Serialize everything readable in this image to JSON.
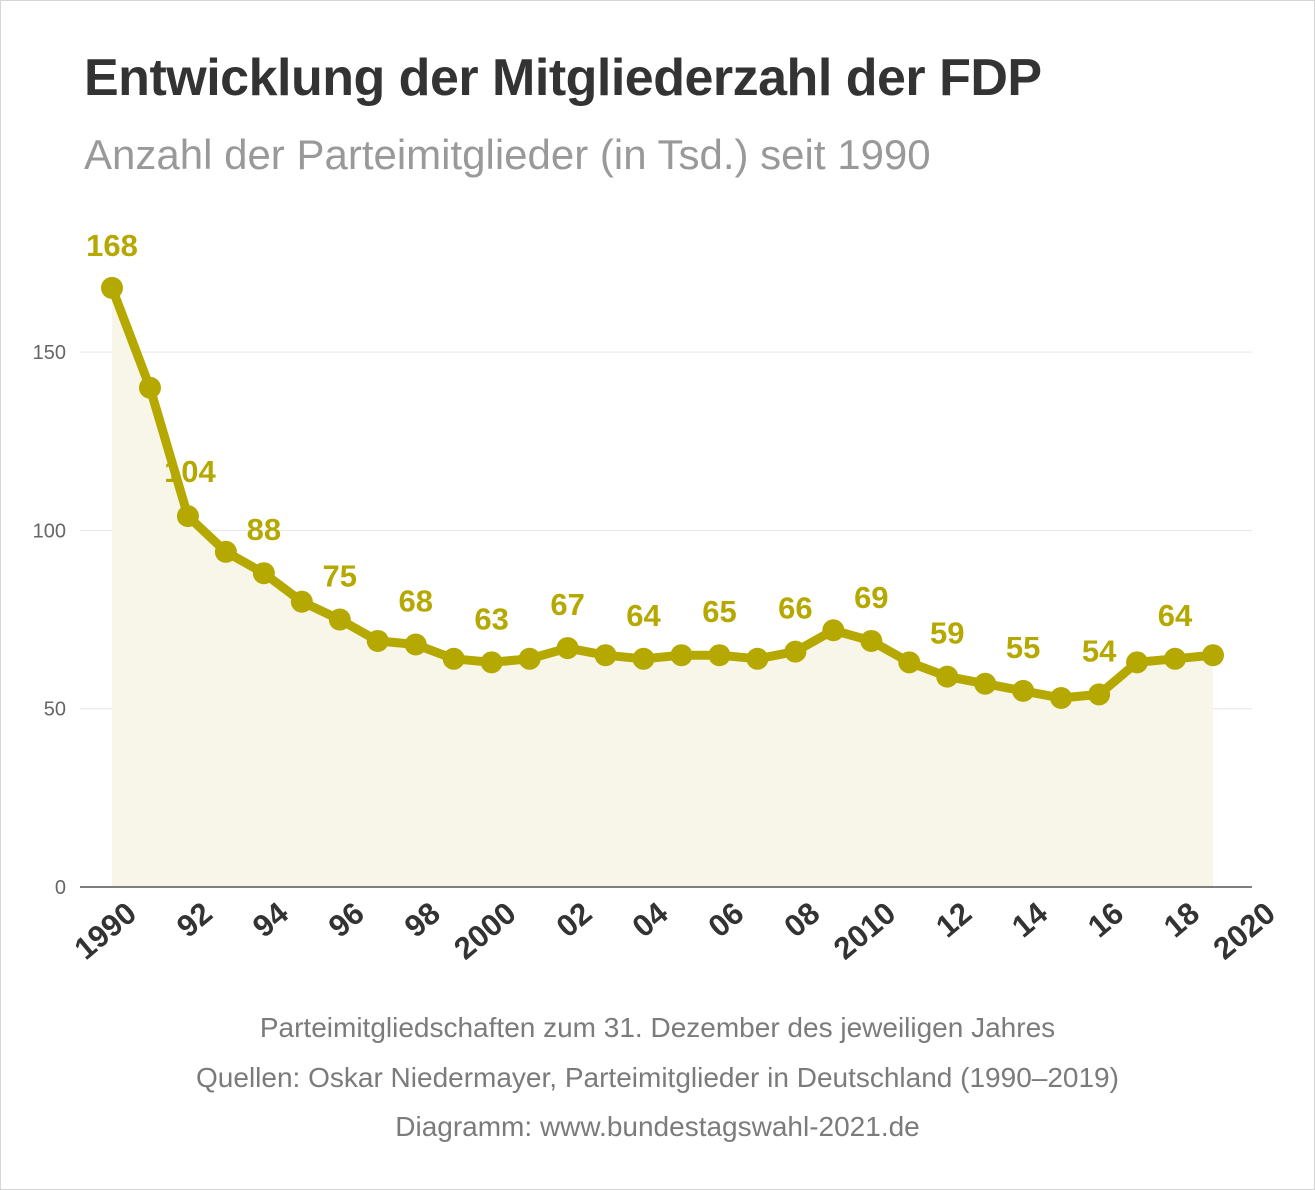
{
  "chart_data": {
    "type": "line",
    "title": "Entwicklung der Mitgliederzahl der FDP",
    "subtitle": "Anzahl der Parteimitglieder (in Tsd.) seit 1990",
    "x": [
      1990,
      1991,
      1992,
      1993,
      1994,
      1995,
      1996,
      1997,
      1998,
      1999,
      2000,
      2001,
      2002,
      2003,
      2004,
      2005,
      2006,
      2007,
      2008,
      2009,
      2010,
      2011,
      2012,
      2013,
      2014,
      2015,
      2016,
      2017,
      2018,
      2019
    ],
    "series": [
      {
        "values": [
          168,
          140,
          104,
          94,
          88,
          80,
          75,
          69,
          68,
          64,
          63,
          64,
          67,
          65,
          64,
          65,
          65,
          64,
          66,
          72,
          69,
          63,
          59,
          57,
          55,
          53,
          54,
          63,
          64,
          65
        ],
        "data_labels": {
          "1990": "168",
          "1992": "104",
          "1994": "88",
          "1996": "75",
          "1998": "68",
          "2000": "63",
          "2002": "67",
          "2004": "64",
          "2006": "65",
          "2008": "66",
          "2010": "69",
          "2012": "59",
          "2014": "55",
          "2016": "54",
          "2018": "64"
        }
      }
    ],
    "xlim": [
      1990,
      2020
    ],
    "ylim": [
      0,
      168
    ],
    "y_ticks": [
      0,
      50,
      100,
      150
    ],
    "x_ticks": [
      {
        "value": 1990,
        "label": "1990"
      },
      {
        "value": 1992,
        "label": "92"
      },
      {
        "value": 1994,
        "label": "94"
      },
      {
        "value": 1996,
        "label": "96"
      },
      {
        "value": 1998,
        "label": "98"
      },
      {
        "value": 2000,
        "label": "2000"
      },
      {
        "value": 2002,
        "label": "02"
      },
      {
        "value": 2004,
        "label": "04"
      },
      {
        "value": 2006,
        "label": "06"
      },
      {
        "value": 2008,
        "label": "08"
      },
      {
        "value": 2010,
        "label": "2010"
      },
      {
        "value": 2012,
        "label": "12"
      },
      {
        "value": 2014,
        "label": "14"
      },
      {
        "value": 2016,
        "label": "16"
      },
      {
        "value": 2018,
        "label": "18"
      },
      {
        "value": 2020,
        "label": "2020"
      }
    ],
    "grid": true,
    "colors": {
      "line": "#b5a800",
      "fill": "#f8f6e8",
      "grid": "#e6e6e6",
      "axis": "#333333"
    }
  },
  "footer": {
    "note": "Parteimitgliedschaften zum 31. Dezember des jeweiligen Jahres",
    "source": "Quellen: Oskar Niedermayer, Parteimitglieder in Deutschland (1990–2019)",
    "credit": "Diagramm: www.bundestagswahl-2021.de"
  }
}
